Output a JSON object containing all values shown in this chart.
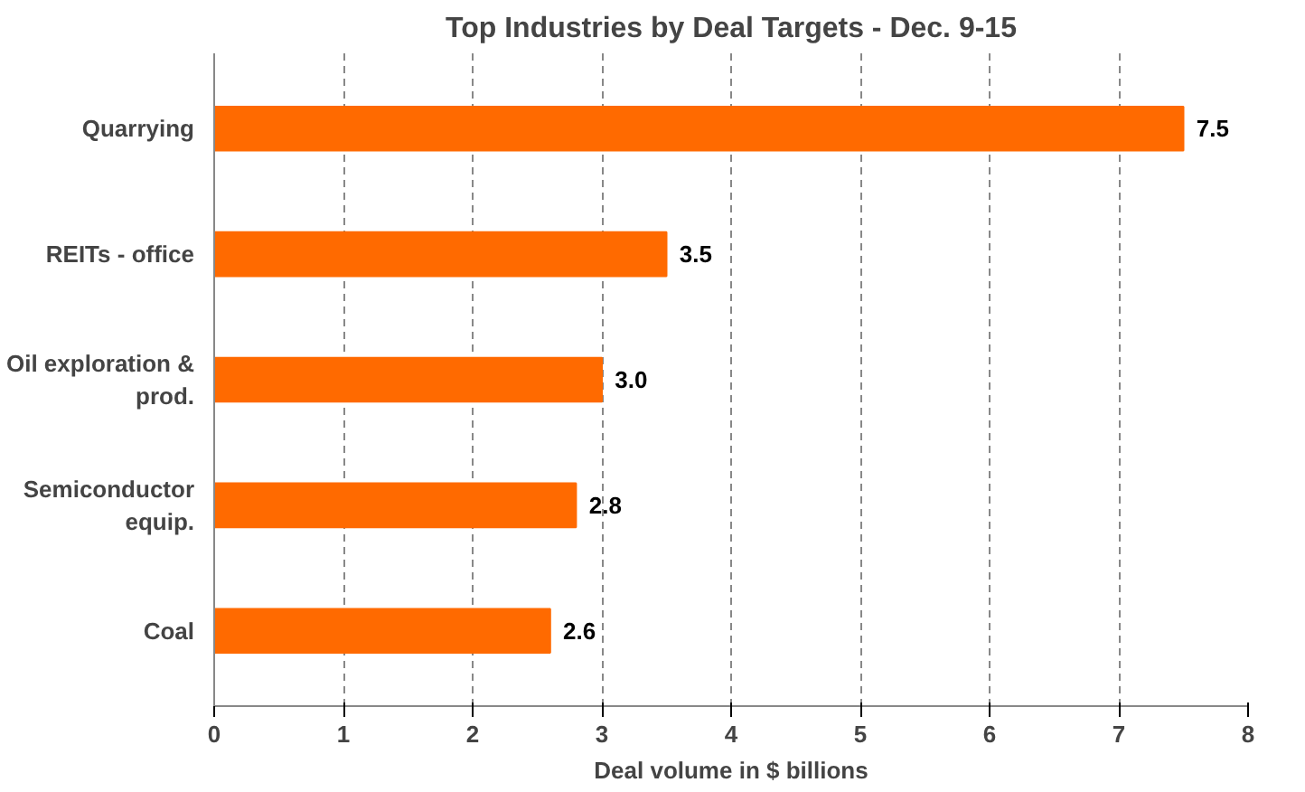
{
  "chart_data": {
    "type": "bar",
    "orientation": "horizontal",
    "title": "Top Industries by Deal Targets - Dec. 9-15",
    "xlabel": "Deal volume in $ billions",
    "categories": [
      "Quarrying",
      "REITs - office",
      "Oil exploration & prod.",
      "Semiconductor equip.",
      "Coal"
    ],
    "values": [
      7.5,
      3.5,
      3.0,
      2.8,
      2.6
    ],
    "value_labels": [
      "7.5",
      "3.5",
      "3.0",
      "2.8",
      "2.6"
    ],
    "color": "#ff6a00",
    "xlim": [
      0,
      8
    ],
    "xticks": [
      0,
      1,
      2,
      3,
      4,
      5,
      6,
      7,
      8
    ],
    "grid": "x"
  }
}
